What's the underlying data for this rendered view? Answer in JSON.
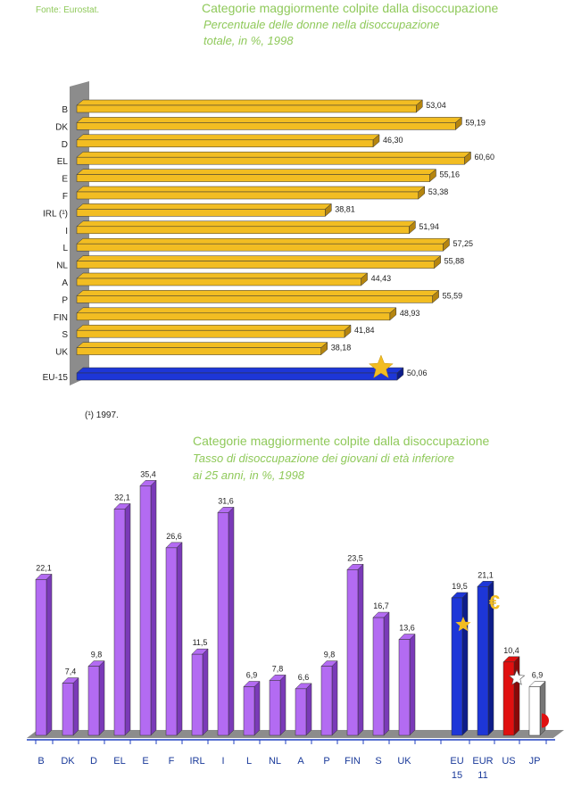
{
  "source": "Fonte: Eurostat.",
  "chart_data": [
    {
      "type": "bar",
      "orientation": "horizontal",
      "title": "Categorie maggiormente colpite dalla disoccupazione",
      "subtitle_lines": [
        "Percentuale delle donne nella disoccupazione",
        "totale, in %, 1998"
      ],
      "categories": [
        "B",
        "DK",
        "D",
        "EL",
        "E",
        "F",
        "IRL (¹)",
        "I",
        "L",
        "NL",
        "A",
        "P",
        "FIN",
        "S",
        "UK",
        "EU-15"
      ],
      "values": [
        53.04,
        59.19,
        46.3,
        60.6,
        55.16,
        53.38,
        38.81,
        51.94,
        57.25,
        55.88,
        44.43,
        55.59,
        48.93,
        41.84,
        38.18,
        50.06
      ],
      "value_labels": [
        "53,04",
        "59,19",
        "46,30",
        "60,60",
        "55,16",
        "53,38",
        "38,81",
        "51,94",
        "57,25",
        "55,88",
        "44,43",
        "55,59",
        "48,93",
        "41,84",
        "38,18",
        "50,06"
      ],
      "colors": {
        "bar": "#f2bd22",
        "bar_dark": "#b5850f",
        "total": "#1d36d8",
        "total_dark": "#0d1c8a",
        "wall": "#8c8c8c"
      },
      "note": "(¹) 1997."
    },
    {
      "type": "bar",
      "title": "Categorie maggiormente colpite dalla disoccupazione",
      "subtitle_lines": [
        "Tasso di disoccupazione dei giovani di età inferiore",
        "ai 25 anni, in %, 1998"
      ],
      "categories": [
        "B",
        "DK",
        "D",
        "EL",
        "E",
        "F",
        "IRL",
        "I",
        "L",
        "NL",
        "A",
        "P",
        "FIN",
        "S",
        "UK",
        "EU 15",
        "EUR 11",
        "US",
        "JP"
      ],
      "category_lines": [
        [
          "B"
        ],
        [
          "DK"
        ],
        [
          "D"
        ],
        [
          "EL"
        ],
        [
          "E"
        ],
        [
          "F"
        ],
        [
          "IRL"
        ],
        [
          "I"
        ],
        [
          "L"
        ],
        [
          "NL"
        ],
        [
          "A"
        ],
        [
          "P"
        ],
        [
          "FIN"
        ],
        [
          "S"
        ],
        [
          "UK"
        ],
        [
          "EU",
          "15"
        ],
        [
          "EUR",
          "11"
        ],
        [
          "US"
        ],
        [
          "JP"
        ]
      ],
      "values": [
        22.1,
        7.4,
        9.8,
        32.1,
        35.4,
        26.6,
        11.5,
        31.6,
        6.9,
        7.8,
        6.6,
        9.8,
        23.5,
        16.7,
        13.6,
        19.5,
        21.1,
        10.4,
        6.9
      ],
      "value_labels": [
        "22,1",
        "7,4",
        "9,8",
        "32,1",
        "35,4",
        "26,6",
        "11,5",
        "31,6",
        "6,9",
        "7,8",
        "6,6",
        "9,8",
        "23,5",
        "16,7",
        "13,6",
        "19,5",
        "21,1",
        "10,4",
        "6,9"
      ],
      "colors": {
        "bar": "#b36bf2",
        "bar_dark": "#7a3ab8",
        "eu": "#1d36d8",
        "eu_dark": "#0d1c8a",
        "us": "#e01010",
        "us_dark": "#8a0808",
        "jp": "#ffffff",
        "jp_dark": "#777777",
        "axis": "#2040c0",
        "floor": "#8c8c8c"
      }
    }
  ]
}
